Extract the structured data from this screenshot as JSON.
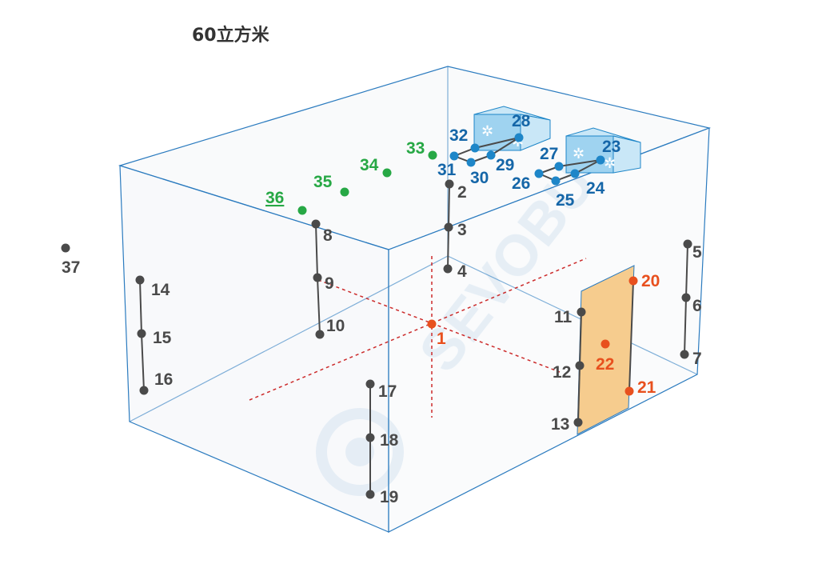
{
  "title": "60立方米",
  "watermark": "SEVOBU",
  "colors": {
    "edge": "#2b7bbf",
    "gray": "#4a4a4a",
    "orange": "#e8501e",
    "blue": "#1e86c8",
    "blue_label": "#1566a8",
    "green": "#27a845",
    "door_fill": "#f6cc8e",
    "ac_fill": "#9fd3f0",
    "guide": "#cc2b2b",
    "watermark": "#dbe9f4"
  },
  "points": [
    {
      "id": "1",
      "label": "1",
      "group": "orange"
    },
    {
      "id": "2",
      "label": "2",
      "group": "gray"
    },
    {
      "id": "3",
      "label": "3",
      "group": "gray"
    },
    {
      "id": "4",
      "label": "4",
      "group": "gray"
    },
    {
      "id": "5",
      "label": "5",
      "group": "gray"
    },
    {
      "id": "6",
      "label": "6",
      "group": "gray"
    },
    {
      "id": "7",
      "label": "7",
      "group": "gray"
    },
    {
      "id": "8",
      "label": "8",
      "group": "gray"
    },
    {
      "id": "9",
      "label": "9",
      "group": "gray"
    },
    {
      "id": "10",
      "label": "10",
      "group": "gray"
    },
    {
      "id": "11",
      "label": "11",
      "group": "gray"
    },
    {
      "id": "12",
      "label": "12",
      "group": "gray"
    },
    {
      "id": "13",
      "label": "13",
      "group": "gray"
    },
    {
      "id": "14",
      "label": "14",
      "group": "gray"
    },
    {
      "id": "15",
      "label": "15",
      "group": "gray"
    },
    {
      "id": "16",
      "label": "16",
      "group": "gray"
    },
    {
      "id": "17",
      "label": "17",
      "group": "gray"
    },
    {
      "id": "18",
      "label": "18",
      "group": "gray"
    },
    {
      "id": "19",
      "label": "19",
      "group": "gray"
    },
    {
      "id": "20",
      "label": "20",
      "group": "orange"
    },
    {
      "id": "21",
      "label": "21",
      "group": "orange"
    },
    {
      "id": "22",
      "label": "22",
      "group": "orange"
    },
    {
      "id": "23",
      "label": "23",
      "group": "blue"
    },
    {
      "id": "24",
      "label": "24",
      "group": "blue"
    },
    {
      "id": "25",
      "label": "25",
      "group": "blue"
    },
    {
      "id": "26",
      "label": "26",
      "group": "blue"
    },
    {
      "id": "27",
      "label": "27",
      "group": "blue"
    },
    {
      "id": "28",
      "label": "28",
      "group": "blue"
    },
    {
      "id": "29",
      "label": "29",
      "group": "blue"
    },
    {
      "id": "30",
      "label": "30",
      "group": "blue"
    },
    {
      "id": "31",
      "label": "31",
      "group": "blue"
    },
    {
      "id": "32",
      "label": "32",
      "group": "blue"
    },
    {
      "id": "33",
      "label": "33",
      "group": "green"
    },
    {
      "id": "34",
      "label": "34",
      "group": "green"
    },
    {
      "id": "35",
      "label": "35",
      "group": "green"
    },
    {
      "id": "36",
      "label": "36",
      "group": "green",
      "underline": true
    },
    {
      "id": "37",
      "label": "37",
      "group": "gray"
    }
  ]
}
